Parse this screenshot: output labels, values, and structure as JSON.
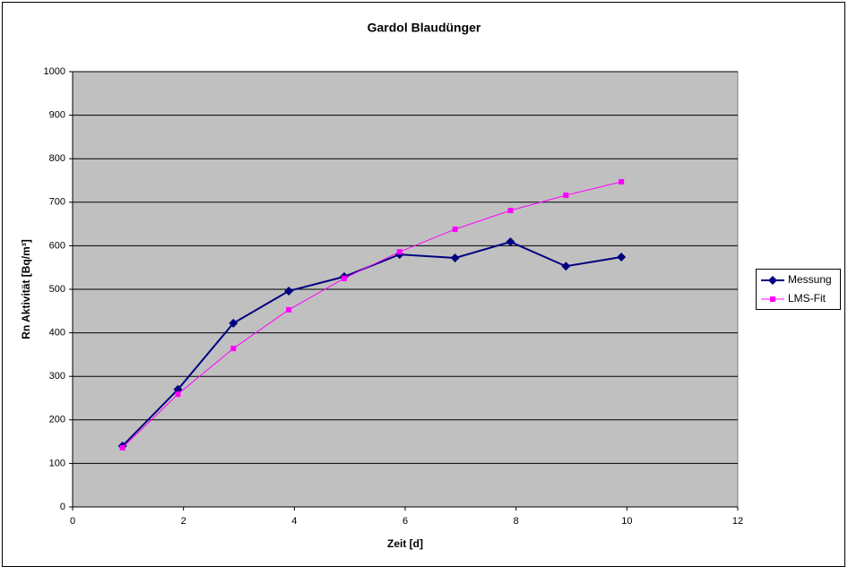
{
  "chart_data": {
    "type": "line",
    "title": "Gardol Blaudünger",
    "x_label": "Zeit [d]",
    "y_label": "Rn Aktivität [Bq/m³]",
    "x": [
      0.9,
      1.9,
      2.9,
      3.9,
      4.9,
      5.9,
      6.9,
      7.9,
      8.9,
      9.9
    ],
    "series": [
      {
        "name": "Messung",
        "color": "#000080",
        "marker": "diamond",
        "values": [
          140,
          270,
          422,
          496,
          529,
          580,
          572,
          609,
          553,
          574
        ]
      },
      {
        "name": "LMS-Fit",
        "color": "#ff00ff",
        "marker": "square",
        "values": [
          136,
          259,
          364,
          453,
          525,
          586,
          638,
          681,
          716,
          747
        ]
      }
    ],
    "xlim": [
      0,
      12
    ],
    "xticks": [
      0,
      2,
      4,
      6,
      8,
      10,
      12
    ],
    "ylim": [
      0,
      1000
    ],
    "yticks": [
      0,
      100,
      200,
      300,
      400,
      500,
      600,
      700,
      800,
      900,
      1000
    ],
    "grid": true,
    "legend": "right",
    "plot_background": "#c0c0c0"
  }
}
